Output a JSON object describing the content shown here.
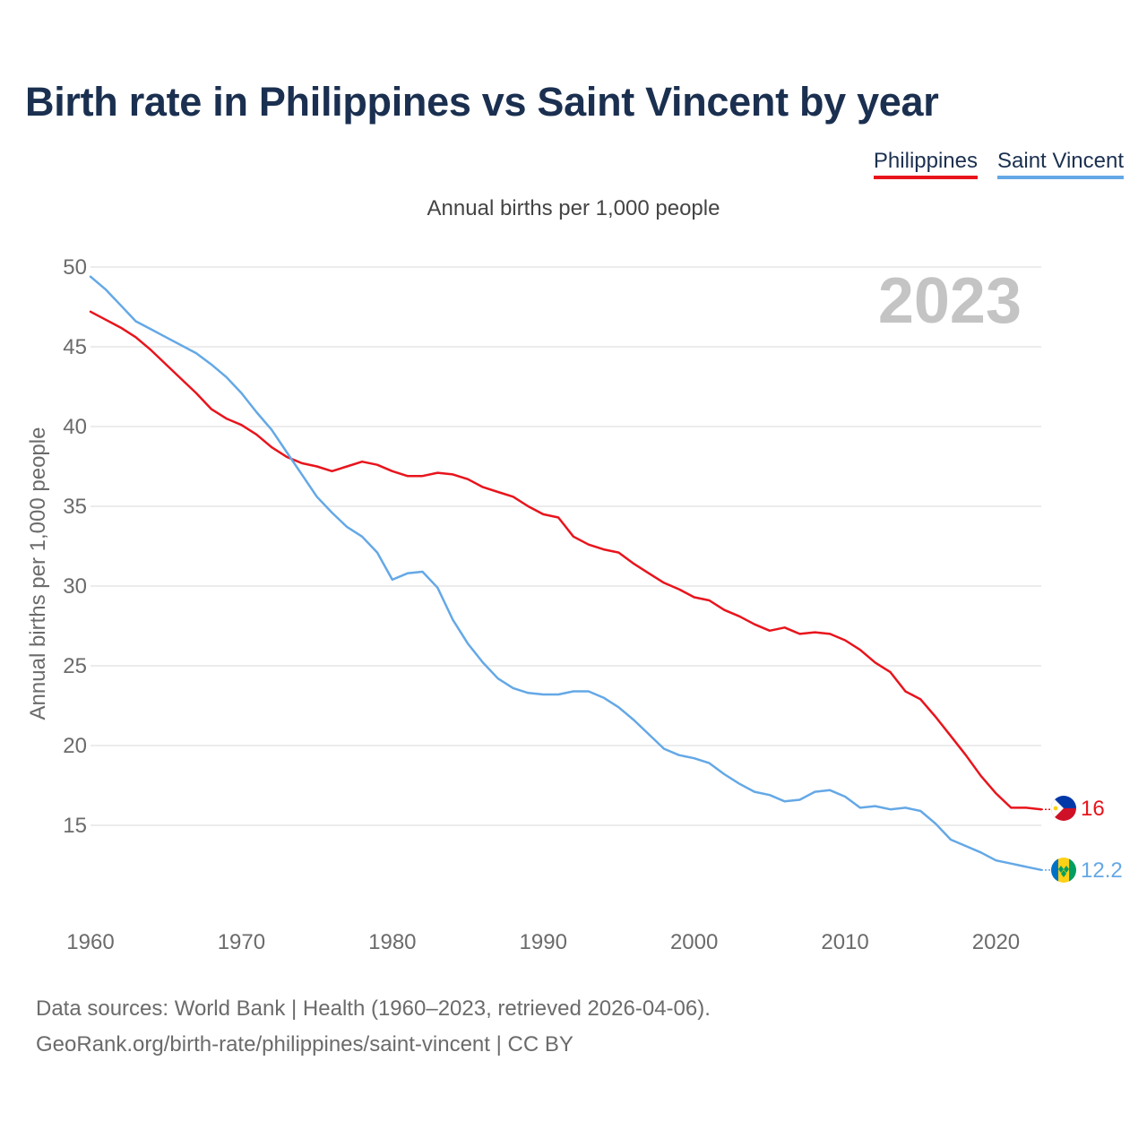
{
  "title": "Birth rate in Philippines vs Saint Vincent by year",
  "legend": {
    "philippines": "Philippines",
    "saint_vincent": "Saint Vincent"
  },
  "colors": {
    "philippines": "#e8141c",
    "saint_vincent": "#64a8e6",
    "grid": "#e6e6e6",
    "year_label": "#c4c4c4"
  },
  "sources": {
    "line1": "Data sources: World Bank | Health (1960–2023, retrieved 2026-04-06).",
    "line2": "GeoRank.org/birth-rate/philippines/saint-vincent | CC BY"
  },
  "chart_data": {
    "type": "line",
    "title": "Birth rate in Philippines vs Saint Vincent by year",
    "subtitle": "Annual births per 1,000 people",
    "xlabel": "",
    "ylabel": "Annual births per 1,000 people",
    "year_label": "2023",
    "xlim": [
      1960,
      2023
    ],
    "ylim": [
      10,
      50
    ],
    "x_ticks": [
      1960,
      1970,
      1980,
      1990,
      2000,
      2010,
      2020
    ],
    "y_ticks": [
      15,
      20,
      25,
      30,
      35,
      40,
      45,
      50
    ],
    "grid": true,
    "legend_position": "top-right",
    "series": [
      {
        "name": "Philippines",
        "color": "#e8141c",
        "end_label": "16",
        "flag": "philippines-flag-icon",
        "x_start": 1960,
        "values": [
          47.2,
          46.7,
          46.2,
          45.6,
          44.8,
          43.9,
          43.0,
          42.1,
          41.1,
          40.5,
          40.1,
          39.5,
          38.7,
          38.1,
          37.7,
          37.5,
          37.2,
          37.5,
          37.8,
          37.6,
          37.2,
          36.9,
          36.9,
          37.1,
          37.0,
          36.7,
          36.2,
          35.9,
          35.6,
          35.0,
          34.5,
          34.3,
          33.1,
          32.6,
          32.3,
          32.1,
          31.4,
          30.8,
          30.2,
          29.8,
          29.3,
          29.1,
          28.5,
          28.1,
          27.6,
          27.2,
          27.4,
          27.0,
          27.1,
          27.0,
          26.6,
          26.0,
          25.2,
          24.6,
          23.4,
          22.9,
          21.8,
          20.6,
          19.4,
          18.1,
          17.0,
          16.1,
          16.1,
          16.0
        ]
      },
      {
        "name": "Saint Vincent",
        "color": "#64a8e6",
        "end_label": "12.2",
        "flag": "saint-vincent-flag-icon",
        "x_start": 1960,
        "values": [
          49.4,
          48.6,
          47.6,
          46.6,
          46.1,
          45.6,
          45.1,
          44.6,
          43.9,
          43.1,
          42.1,
          40.9,
          39.8,
          38.4,
          37.0,
          35.6,
          34.6,
          33.7,
          33.1,
          32.1,
          30.4,
          30.8,
          30.9,
          29.9,
          27.9,
          26.4,
          25.2,
          24.2,
          23.6,
          23.3,
          23.2,
          23.2,
          23.4,
          23.4,
          23.0,
          22.4,
          21.6,
          20.7,
          19.8,
          19.4,
          19.2,
          18.9,
          18.2,
          17.6,
          17.1,
          16.9,
          16.5,
          16.6,
          17.1,
          17.2,
          16.8,
          16.1,
          16.2,
          16.0,
          16.1,
          15.9,
          15.1,
          14.1,
          13.7,
          13.3,
          12.8,
          12.6,
          12.4,
          12.2
        ]
      }
    ]
  }
}
